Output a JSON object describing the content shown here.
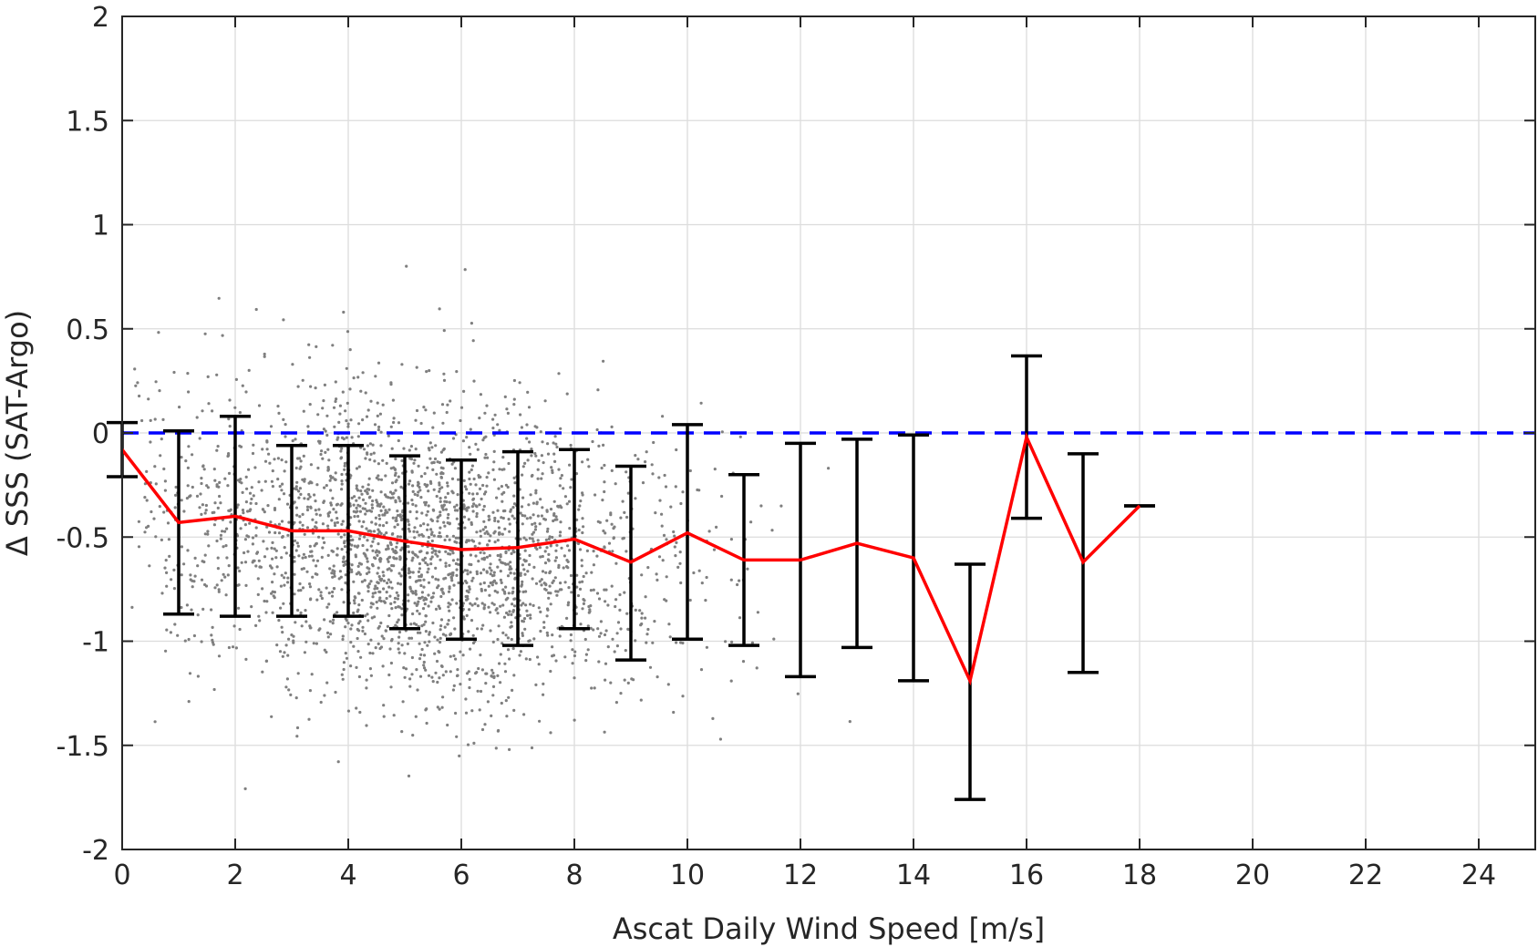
{
  "chart_data": {
    "type": "scatter",
    "xlabel": "Ascat Daily Wind Speed [m/s]",
    "ylabel": "Δ SSS (SAT-Argo)",
    "xlim": [
      0,
      25
    ],
    "ylim": [
      -2,
      2
    ],
    "xticks": [
      0,
      2,
      4,
      6,
      8,
      10,
      12,
      14,
      16,
      18,
      20,
      22,
      24
    ],
    "yticks": [
      -2,
      -1.5,
      -1,
      -0.5,
      0,
      0.5,
      1,
      1.5,
      2
    ],
    "ytick_labels": [
      "-2",
      "-1.5",
      "-1",
      "-0.5",
      "0",
      "0.5",
      "1",
      "1.5",
      "2"
    ],
    "grid": true,
    "reference_line": {
      "y": 0,
      "style": "dashed",
      "color": "#0000ff"
    },
    "binned_mean": {
      "color": "#ff0000",
      "x": [
        0,
        1,
        2,
        3,
        4,
        5,
        6,
        7,
        8,
        9,
        10,
        11,
        12,
        13,
        14,
        15,
        16,
        17,
        18
      ],
      "mean": [
        -0.08,
        -0.43,
        -0.4,
        -0.47,
        -0.47,
        -0.52,
        -0.56,
        -0.55,
        -0.51,
        -0.62,
        -0.48,
        -0.61,
        -0.61,
        -0.53,
        -0.6,
        -1.19,
        -0.02,
        -0.62,
        -0.35
      ],
      "lower": [
        -0.21,
        -0.87,
        -0.88,
        -0.88,
        -0.88,
        -0.94,
        -0.99,
        -1.02,
        -0.94,
        -1.09,
        -0.99,
        -1.02,
        -1.17,
        -1.03,
        -1.19,
        -1.76,
        -0.41,
        -1.15,
        -0.35
      ],
      "upper": [
        0.05,
        0.01,
        0.08,
        -0.06,
        -0.06,
        -0.11,
        -0.13,
        -0.09,
        -0.08,
        -0.16,
        0.04,
        -0.2,
        -0.05,
        -0.03,
        -0.01,
        -0.63,
        0.37,
        -0.1,
        -0.35
      ]
    },
    "scatter": {
      "color": "#7f7f7f",
      "count": 2600
    }
  }
}
